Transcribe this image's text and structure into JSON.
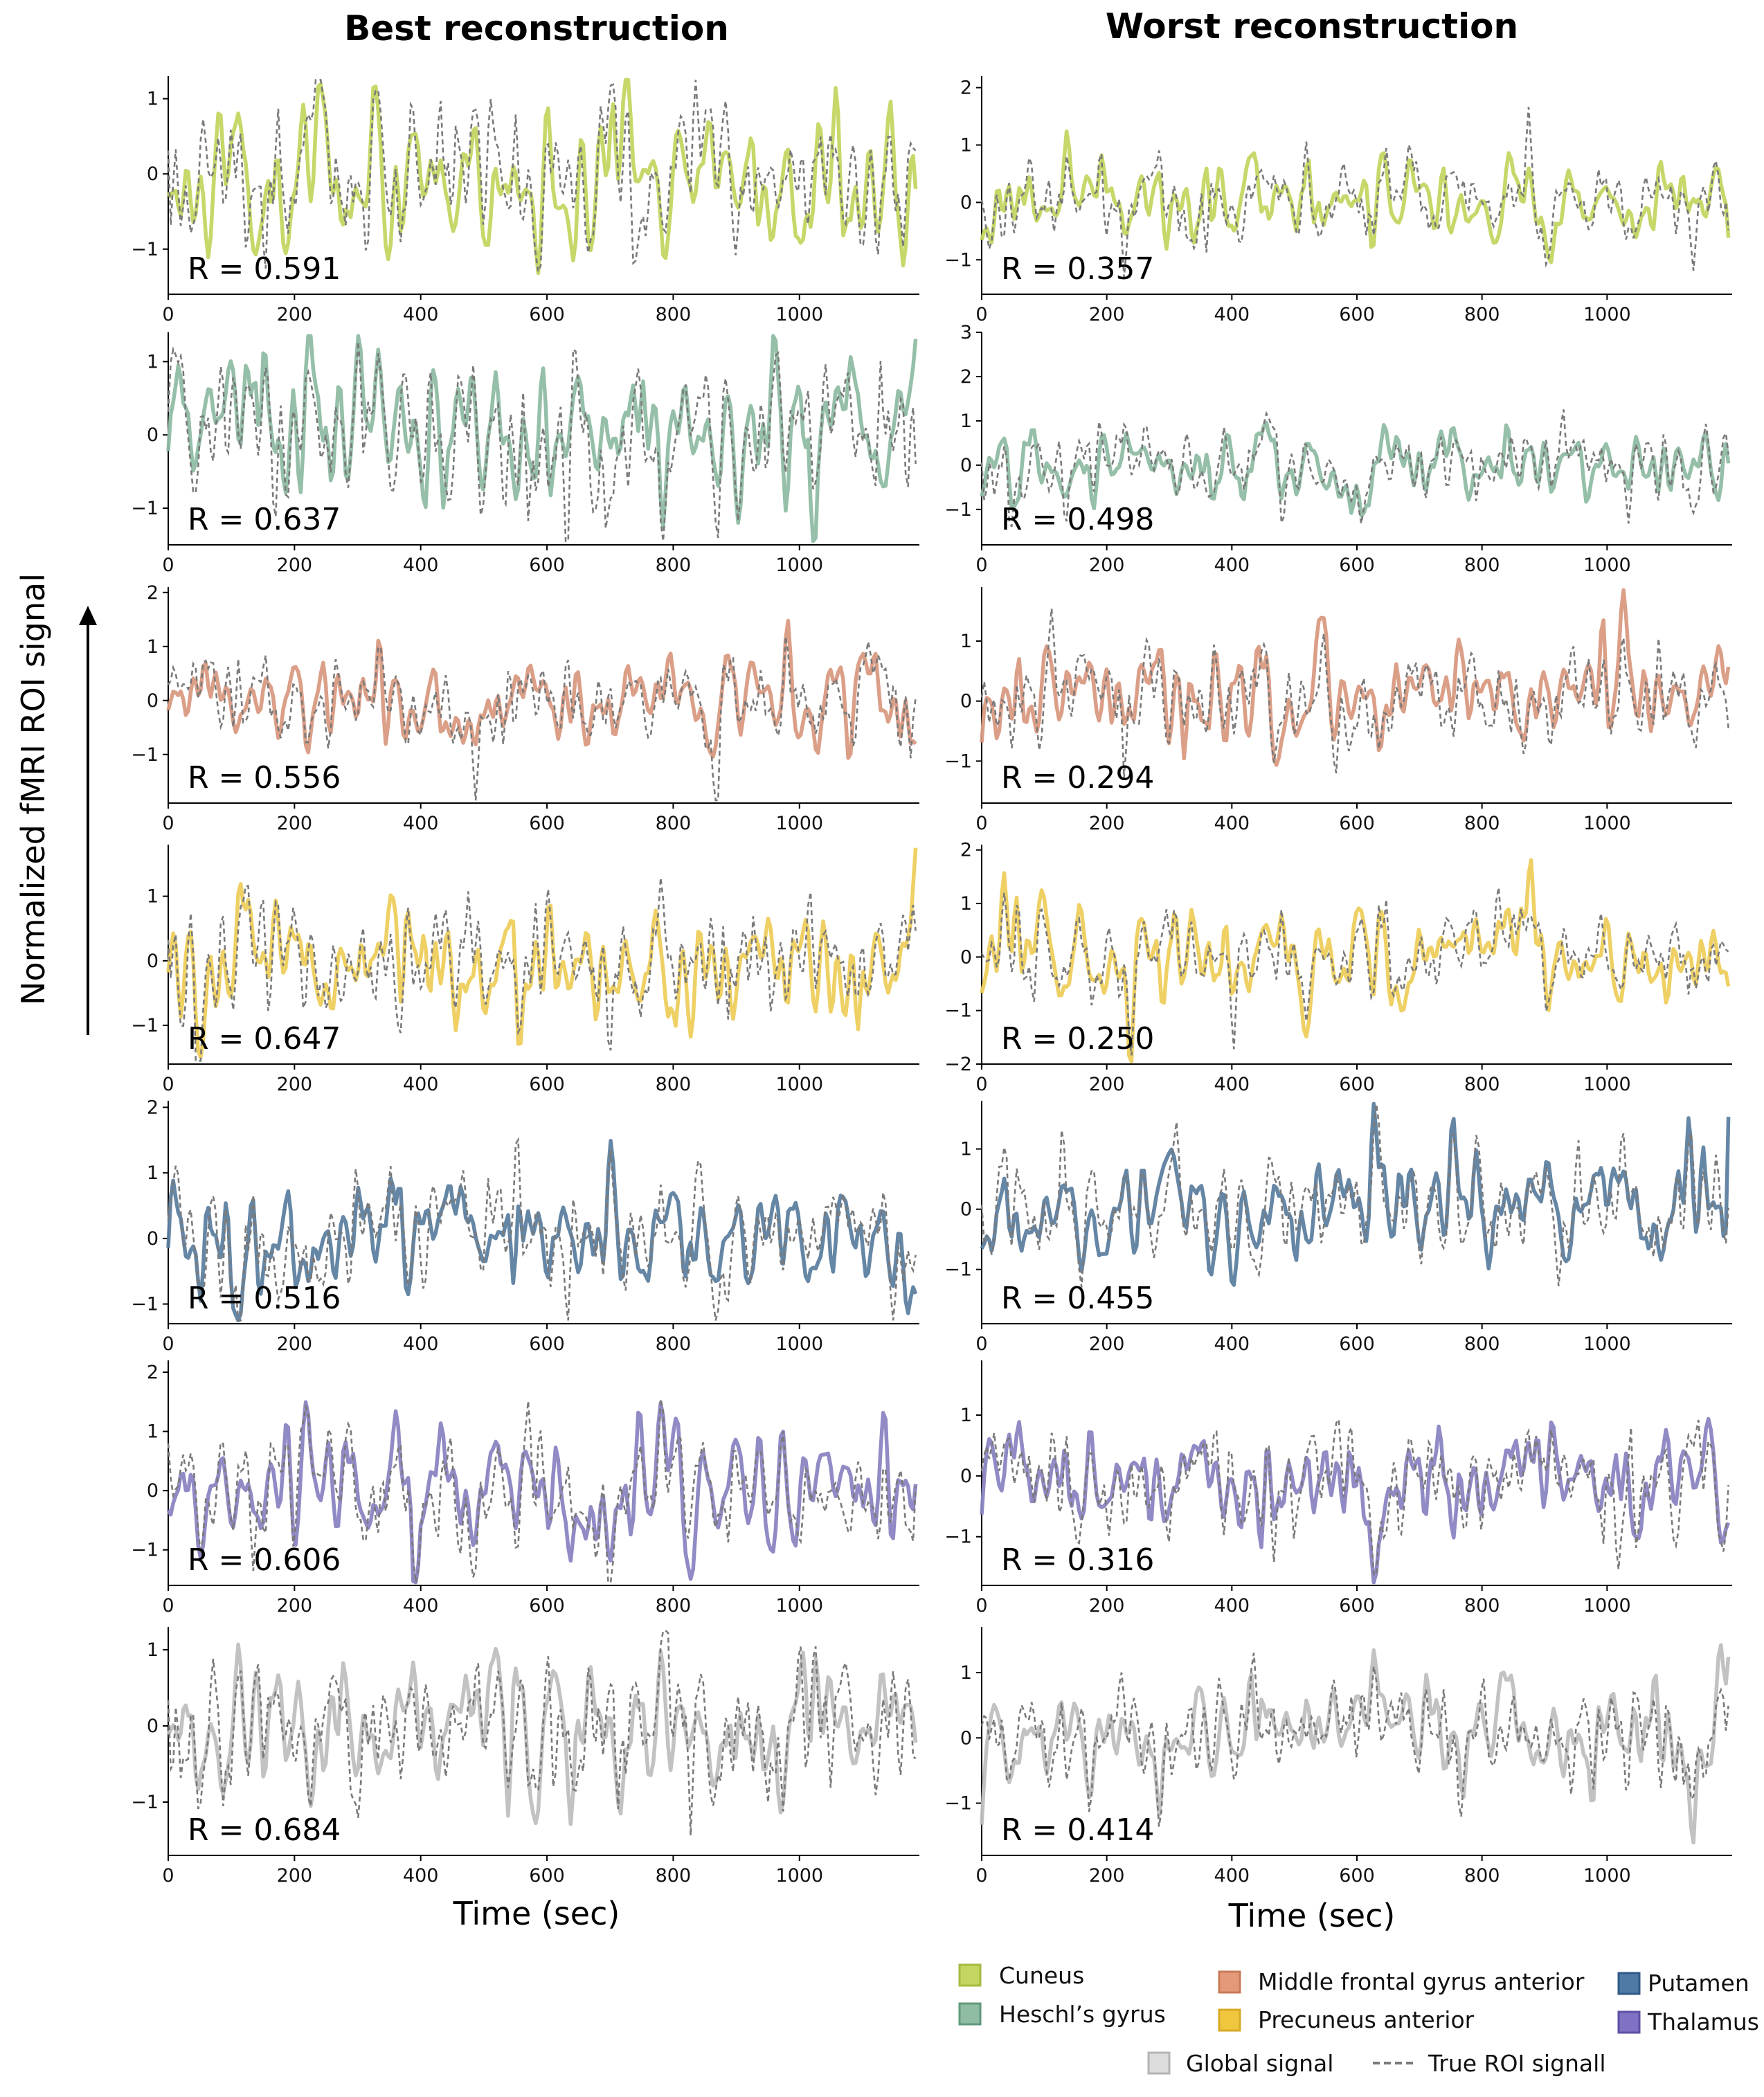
{
  "figure": {
    "y_axis_label": "Normalized fMRI ROI signal",
    "column_titles": [
      "Best reconstruction",
      "Worst reconstruction"
    ],
    "x_axis_label": "Time (sec)"
  },
  "colors": {
    "Cuneus": "#c4d561",
    "Heschl's gyrus": "#8fbca3",
    "Middle frontal gyrus anterior": "#d99a82",
    "Precuneus anterior": "#edcd5c",
    "Putamen": "#5d7fa0",
    "Thalamus": "#8a84c2",
    "Global signal": "#bfbfbf",
    "true_signal": "#7a7a7a"
  },
  "legend": [
    {
      "label": "Cuneus",
      "color": "#c4d561",
      "border": "#a7bb3f",
      "style": "patch"
    },
    {
      "label": "Heschl’s gyrus",
      "color": "#8fbca3",
      "border": "#5f9a7c",
      "style": "patch"
    },
    {
      "label": "Middle frontal gyrus anterior",
      "color": "#e49a78",
      "border": "#c97a58",
      "style": "patch"
    },
    {
      "label": "Precuneus anterior",
      "color": "#f1c63f",
      "border": "#d6aa24",
      "style": "patch"
    },
    {
      "label": "Putamen",
      "color": "#4f7aa6",
      "border": "#2f5a86",
      "style": "patch"
    },
    {
      "label": "Thalamus",
      "color": "#8171c4",
      "border": "#5e4fa6",
      "style": "patch"
    },
    {
      "label": "Global signal",
      "color": "#dcdcdc",
      "border": "#b4b4b4",
      "style": "patch"
    },
    {
      "label": "True ROI signall",
      "color": "#7a7a7a",
      "border": "#7a7a7a",
      "style": "dashed"
    }
  ],
  "chart_data": [
    {
      "type": "line",
      "column": "best",
      "row": 0,
      "roi": "Cuneus",
      "r_label": "R = 0.591",
      "title": "",
      "xlabel": "Time (sec)",
      "ylabel": "Normalized fMRI ROI signal",
      "xlim": [
        0,
        1190
      ],
      "ylim": [
        -1.6,
        1.3
      ],
      "xticks": [
        0,
        200,
        400,
        600,
        800,
        1000
      ],
      "yticks": [
        -1,
        0,
        1
      ],
      "seed": 11,
      "amp": 0.55,
      "series": [
        {
          "name": "Reconstructed (Cuneus)",
          "values": "generated"
        },
        {
          "name": "True ROI signal",
          "values": "generated"
        }
      ]
    },
    {
      "type": "line",
      "column": "best",
      "row": 1,
      "roi": "Heschl's gyrus",
      "r_label": "R = 0.637",
      "title": "",
      "xlabel": "Time (sec)",
      "ylabel": "Normalized fMRI ROI signal",
      "xlim": [
        0,
        1190
      ],
      "ylim": [
        -1.5,
        1.4
      ],
      "xticks": [
        0,
        200,
        400,
        600,
        800,
        1000
      ],
      "yticks": [
        -1,
        0,
        1
      ],
      "seed": 22,
      "amp": 0.55,
      "series": [
        {
          "name": "Reconstructed (Heschl's gyrus)",
          "values": "generated"
        },
        {
          "name": "True ROI signal",
          "values": "generated"
        }
      ]
    },
    {
      "type": "line",
      "column": "best",
      "row": 2,
      "roi": "Middle frontal gyrus anterior",
      "r_label": "R = 0.556",
      "title": "",
      "xlabel": "Time (sec)",
      "ylabel": "Normalized fMRI ROI signal",
      "xlim": [
        0,
        1190
      ],
      "ylim": [
        -1.9,
        2.1
      ],
      "xticks": [
        0,
        200,
        400,
        600,
        800,
        1000
      ],
      "yticks": [
        -1,
        0,
        1,
        2
      ],
      "seed": 33,
      "amp": 0.5,
      "series": [
        {
          "name": "Reconstructed (Middle frontal gyrus anterior)",
          "values": "generated"
        },
        {
          "name": "True ROI signal",
          "values": "generated"
        }
      ]
    },
    {
      "type": "line",
      "column": "best",
      "row": 3,
      "roi": "Precuneus anterior",
      "r_label": "R = 0.647",
      "title": "",
      "xlabel": "Time (sec)",
      "ylabel": "Normalized fMRI ROI signal",
      "xlim": [
        0,
        1190
      ],
      "ylim": [
        -1.6,
        1.8
      ],
      "xticks": [
        0,
        200,
        400,
        600,
        800,
        1000
      ],
      "yticks": [
        -1,
        0,
        1
      ],
      "seed": 44,
      "amp": 0.55,
      "series": [
        {
          "name": "Reconstructed (Precuneus anterior)",
          "values": "generated"
        },
        {
          "name": "True ROI signal",
          "values": "generated"
        }
      ]
    },
    {
      "type": "line",
      "column": "best",
      "row": 4,
      "roi": "Putamen",
      "r_label": "R = 0.516",
      "title": "",
      "xlabel": "Time (sec)",
      "ylabel": "Normalized fMRI ROI signal",
      "xlim": [
        0,
        1190
      ],
      "ylim": [
        -1.3,
        2.1
      ],
      "xticks": [
        0,
        200,
        400,
        600,
        800,
        1000
      ],
      "yticks": [
        -1,
        0,
        1,
        2
      ],
      "seed": 55,
      "amp": 0.5,
      "series": [
        {
          "name": "Reconstructed (Putamen)",
          "values": "generated"
        },
        {
          "name": "True ROI signal",
          "values": "generated"
        }
      ]
    },
    {
      "type": "line",
      "column": "best",
      "row": 5,
      "roi": "Thalamus",
      "r_label": "R = 0.606",
      "title": "",
      "xlabel": "Time (sec)",
      "ylabel": "Normalized fMRI ROI signal",
      "xlim": [
        0,
        1190
      ],
      "ylim": [
        -1.6,
        2.2
      ],
      "xticks": [
        0,
        200,
        400,
        600,
        800,
        1000
      ],
      "yticks": [
        -1,
        0,
        1,
        2
      ],
      "seed": 66,
      "amp": 0.55,
      "series": [
        {
          "name": "Reconstructed (Thalamus)",
          "values": "generated"
        },
        {
          "name": "True ROI signal",
          "values": "generated"
        }
      ]
    },
    {
      "type": "line",
      "column": "best",
      "row": 6,
      "roi": "Global signal",
      "r_label": "R = 0.684",
      "title": "",
      "xlabel": "Time (sec)",
      "ylabel": "Normalized fMRI ROI signal",
      "xlim": [
        0,
        1190
      ],
      "ylim": [
        -1.7,
        1.3
      ],
      "xticks": [
        0,
        200,
        400,
        600,
        800,
        1000
      ],
      "yticks": [
        -1,
        0,
        1
      ],
      "seed": 77,
      "amp": 0.55,
      "series": [
        {
          "name": "Reconstructed (Global signal)",
          "values": "generated"
        },
        {
          "name": "True ROI signal",
          "values": "generated"
        }
      ]
    },
    {
      "type": "line",
      "column": "worst",
      "row": 0,
      "roi": "Cuneus",
      "r_label": "R = 0.357",
      "title": "",
      "xlabel": "Time (sec)",
      "ylabel": "Normalized fMRI ROI signal",
      "xlim": [
        0,
        1200
      ],
      "ylim": [
        -1.6,
        2.2
      ],
      "xticks": [
        0,
        200,
        400,
        600,
        800,
        1000
      ],
      "yticks": [
        -1,
        0,
        1,
        2
      ],
      "seed": 111,
      "amp": 0.45,
      "series": [
        {
          "name": "Reconstructed (Cuneus)",
          "values": "generated"
        },
        {
          "name": "True ROI signal",
          "values": "generated"
        }
      ]
    },
    {
      "type": "line",
      "column": "worst",
      "row": 1,
      "roi": "Heschl's gyrus",
      "r_label": "R = 0.498",
      "title": "",
      "xlabel": "Time (sec)",
      "ylabel": "Normalized fMRI ROI signal",
      "xlim": [
        0,
        1200
      ],
      "ylim": [
        -1.8,
        3
      ],
      "xticks": [
        0,
        200,
        400,
        600,
        800,
        1000
      ],
      "yticks": [
        -1,
        0,
        1,
        2,
        3
      ],
      "seed": 122,
      "amp": 0.5,
      "series": [
        {
          "name": "Reconstructed (Heschl's gyrus)",
          "values": "generated"
        },
        {
          "name": "True ROI signal",
          "values": "generated"
        }
      ]
    },
    {
      "type": "line",
      "column": "worst",
      "row": 2,
      "roi": "Middle frontal gyrus anterior",
      "r_label": "R = 0.294",
      "title": "",
      "xlabel": "Time (sec)",
      "ylabel": "Normalized fMRI ROI signal",
      "xlim": [
        0,
        1200
      ],
      "ylim": [
        -1.7,
        1.9
      ],
      "xticks": [
        0,
        200,
        400,
        600,
        800,
        1000
      ],
      "yticks": [
        -1,
        0,
        1
      ],
      "seed": 133,
      "amp": 0.5,
      "series": [
        {
          "name": "Reconstructed (Middle frontal gyrus anterior)",
          "values": "generated"
        },
        {
          "name": "True ROI signal",
          "values": "generated"
        }
      ]
    },
    {
      "type": "line",
      "column": "worst",
      "row": 3,
      "roi": "Precuneus anterior",
      "r_label": "R = 0.250",
      "title": "",
      "xlabel": "Time (sec)",
      "ylabel": "Normalized fMRI ROI signal",
      "xlim": [
        0,
        1200
      ],
      "ylim": [
        -2,
        2.1
      ],
      "xticks": [
        0,
        200,
        400,
        600,
        800,
        1000
      ],
      "yticks": [
        -2,
        -1,
        0,
        1,
        2
      ],
      "seed": 144,
      "amp": 0.5,
      "series": [
        {
          "name": "Reconstructed (Precuneus anterior)",
          "values": "generated"
        },
        {
          "name": "True ROI signal",
          "values": "generated"
        }
      ]
    },
    {
      "type": "line",
      "column": "worst",
      "row": 4,
      "roi": "Putamen",
      "r_label": "R = 0.455",
      "title": "",
      "xlabel": "Time (sec)",
      "ylabel": "Normalized fMRI ROI signal",
      "xlim": [
        0,
        1200
      ],
      "ylim": [
        -1.9,
        1.8
      ],
      "xticks": [
        0,
        200,
        400,
        600,
        800,
        1000
      ],
      "yticks": [
        -1,
        0,
        1
      ],
      "seed": 155,
      "amp": 0.5,
      "series": [
        {
          "name": "Reconstructed (Putamen)",
          "values": "generated"
        },
        {
          "name": "True ROI signal",
          "values": "generated"
        }
      ]
    },
    {
      "type": "line",
      "column": "worst",
      "row": 5,
      "roi": "Thalamus",
      "r_label": "R = 0.316",
      "title": "",
      "xlabel": "Time (sec)",
      "ylabel": "Normalized fMRI ROI signal",
      "xlim": [
        0,
        1200
      ],
      "ylim": [
        -1.8,
        1.9
      ],
      "xticks": [
        0,
        200,
        400,
        600,
        800,
        1000
      ],
      "yticks": [
        -1,
        0,
        1
      ],
      "seed": 166,
      "amp": 0.5,
      "series": [
        {
          "name": "Reconstructed (Thalamus)",
          "values": "generated"
        },
        {
          "name": "True ROI signal",
          "values": "generated"
        }
      ]
    },
    {
      "type": "line",
      "column": "worst",
      "row": 6,
      "roi": "Global signal",
      "r_label": "R = 0.414",
      "title": "",
      "xlabel": "Time (sec)",
      "ylabel": "Normalized fMRI ROI signal",
      "xlim": [
        0,
        1200
      ],
      "ylim": [
        -1.8,
        1.7
      ],
      "xticks": [
        0,
        200,
        400,
        600,
        800,
        1000
      ],
      "yticks": [
        -1,
        0,
        1
      ],
      "seed": 177,
      "amp": 0.45,
      "series": [
        {
          "name": "Reconstructed (Global signal)",
          "values": "generated"
        },
        {
          "name": "True ROI signal",
          "values": "generated"
        }
      ]
    }
  ]
}
